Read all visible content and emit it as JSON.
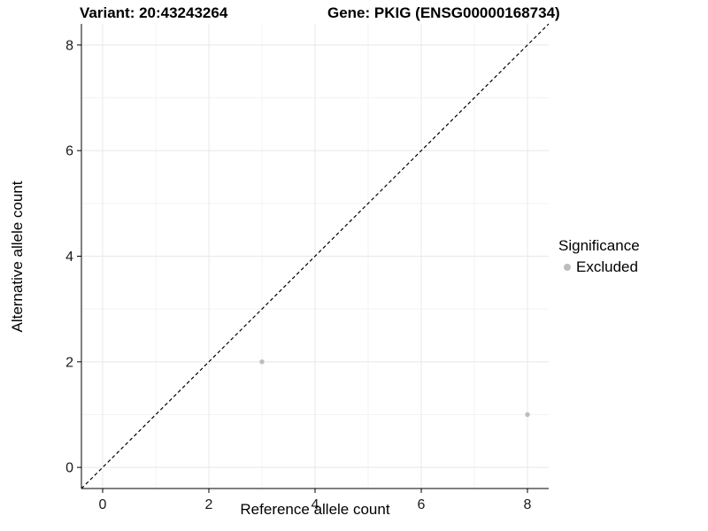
{
  "chart_data": {
    "type": "scatter",
    "title_left": "Variant: 20:43243264",
    "title_right": "Gene: PKIG (ENSG00000168734)",
    "xlabel": "Reference allele count",
    "ylabel": "Alternative allele count",
    "xlim": [
      -0.4,
      8.4
    ],
    "ylim": [
      -0.4,
      8.4
    ],
    "x_ticks": [
      0,
      2,
      4,
      6,
      8
    ],
    "y_ticks": [
      0,
      2,
      4,
      6,
      8
    ],
    "minor_ticks": [
      1,
      3,
      5,
      7
    ],
    "grid": true,
    "colors": {
      "point": "#bdbdbd",
      "major_grid": "#e8e8e8",
      "minor_grid": "#f3f3f3",
      "axis": "#000000",
      "tick_label": "#1a1a1a"
    },
    "identity_line": {
      "style": "dashed",
      "color": "#000000",
      "from": [
        -0.4,
        -0.4
      ],
      "to": [
        8.4,
        8.4
      ]
    },
    "legend": {
      "title": "Significance",
      "position": "right",
      "items": [
        {
          "label": "Excluded",
          "color": "#bdbdbd"
        }
      ]
    },
    "series": [
      {
        "name": "Excluded",
        "color": "#bdbdbd",
        "points": [
          [
            3,
            2
          ],
          [
            8,
            1
          ]
        ]
      }
    ]
  }
}
